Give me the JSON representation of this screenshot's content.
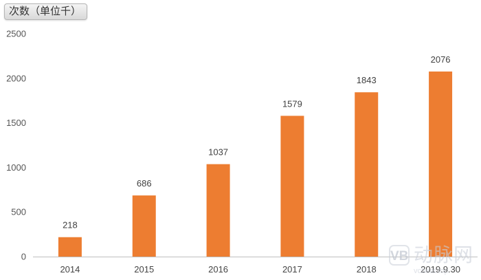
{
  "unit_label": "次数（单位千）",
  "watermark": {
    "badge": "VB",
    "text": "动脉网",
    "sub": "vcbeat.top"
  },
  "colors": {
    "bar": "#ED7D31",
    "axis": "#BFBFBF",
    "label": "#404040"
  },
  "chart_data": {
    "type": "bar",
    "categories": [
      "2014",
      "2015",
      "2016",
      "2017",
      "2018",
      "2019.9.30"
    ],
    "values": [
      218,
      686,
      1037,
      1579,
      1843,
      2076
    ],
    "title": "",
    "xlabel": "",
    "ylabel": "次数（单位千）",
    "ylim": [
      0,
      2500
    ],
    "yticks": [
      0,
      500,
      1000,
      1500,
      2000,
      2500
    ],
    "grid": false,
    "data_labels": true
  }
}
